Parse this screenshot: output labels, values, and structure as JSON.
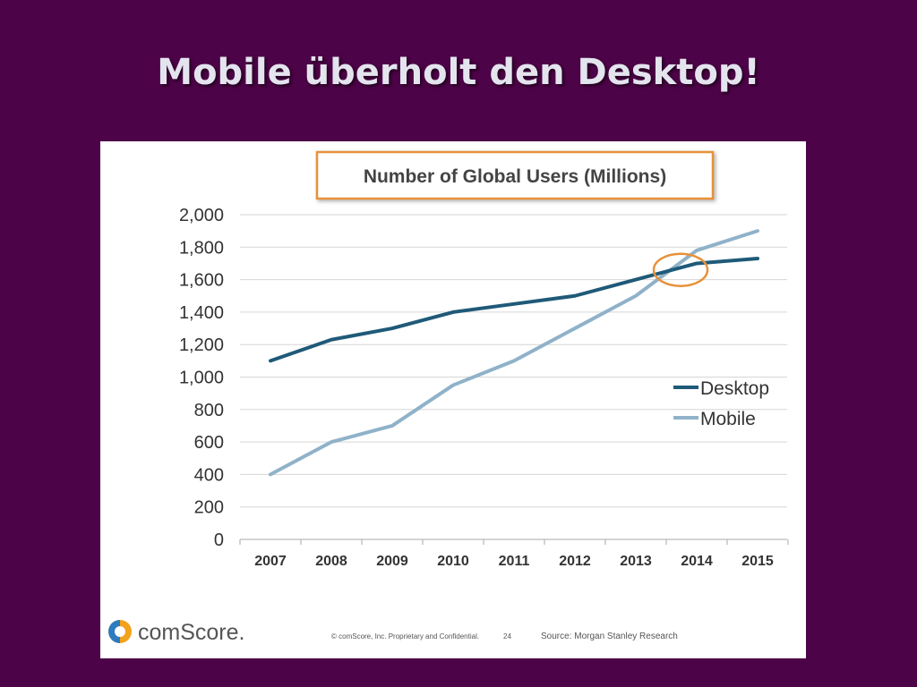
{
  "slide": {
    "title": "Mobile überholt den Desktop!"
  },
  "chart_data": {
    "type": "line",
    "title": "Number of Global Users (Millions)",
    "xlabel": "",
    "ylabel": "",
    "categories": [
      "2007",
      "2008",
      "2009",
      "2010",
      "2011",
      "2012",
      "2013",
      "2014",
      "2015"
    ],
    "series": [
      {
        "name": "Desktop",
        "color": "#1f5a78",
        "values": [
          1100,
          1230,
          1300,
          1400,
          1450,
          1500,
          1600,
          1700,
          1730
        ]
      },
      {
        "name": "Mobile",
        "color": "#8fb2c9",
        "values": [
          400,
          600,
          700,
          950,
          1100,
          1300,
          1500,
          1780,
          1900
        ]
      }
    ],
    "ylim": [
      0,
      2000
    ],
    "yticks": [
      0,
      200,
      400,
      600,
      800,
      1000,
      1200,
      1400,
      1600,
      1800,
      2000
    ],
    "ytick_labels": [
      "0",
      "200",
      "400",
      "600",
      "800",
      "1,000",
      "1,200",
      "1,400",
      "1,600",
      "1,800",
      "2,000"
    ],
    "grid": true,
    "legend": "right",
    "highlight_circle": {
      "x": "2014",
      "y": 1660,
      "color": "#e8913a"
    }
  },
  "footer": {
    "logo_text": "comScore.",
    "copyright": "© comScore, Inc. Proprietary and Confidential.",
    "page_number": "24",
    "source": "Source: Morgan Stanley Research"
  },
  "colors": {
    "background": "#4d0347",
    "title_box_border": "#e8913a"
  }
}
